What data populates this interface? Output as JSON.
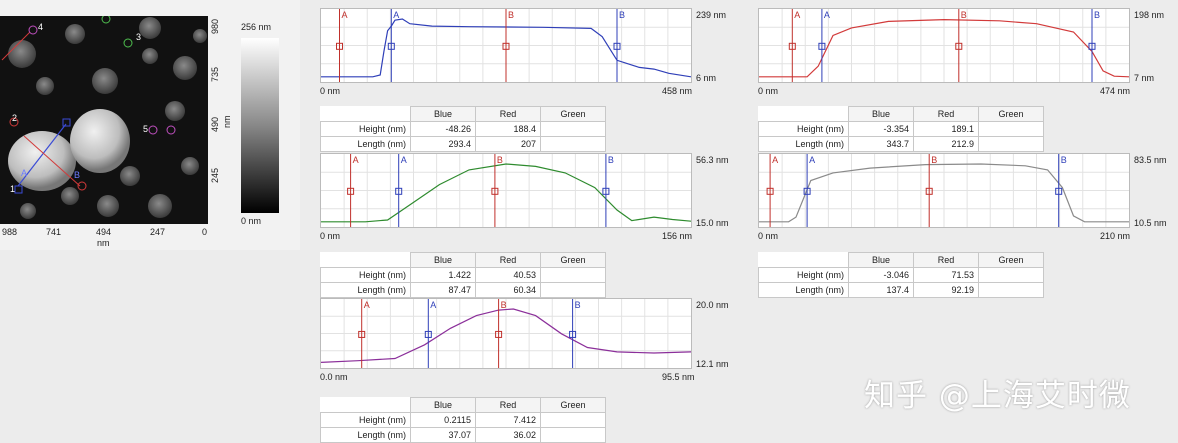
{
  "afm": {
    "y_ticks": [
      "980",
      "735",
      "490",
      "245"
    ],
    "x_ticks": [
      "988",
      "741",
      "494",
      "247",
      "0"
    ],
    "axis_unit": "nm",
    "scale_max": "256 nm",
    "scale_min": "0 nm",
    "markers": [
      "1",
      "2",
      "3",
      "4",
      "5"
    ],
    "cursor_labels": [
      "A",
      "B"
    ]
  },
  "table_headers": {
    "blue": "Blue",
    "red": "Red",
    "green": "Green",
    "height": "Height (nm)",
    "length": "Length (nm)"
  },
  "profiles": [
    {
      "id": "p1",
      "color": "#2f3fb8",
      "x_start": "0 nm",
      "x_end": "458 nm",
      "y_max": "239 nm",
      "y_min": "6 nm",
      "cursor_A_red": 0.05,
      "cursor_A_blue": 0.19,
      "cursor_B_red": 0.5,
      "cursor_B_blue": 0.8,
      "trace": [
        [
          0,
          0.02
        ],
        [
          0.14,
          0.02
        ],
        [
          0.16,
          0.05
        ],
        [
          0.17,
          0.45
        ],
        [
          0.18,
          0.8
        ],
        [
          0.19,
          0.88
        ],
        [
          0.2,
          0.98
        ],
        [
          0.22,
          1
        ],
        [
          0.24,
          0.92
        ],
        [
          0.3,
          0.88
        ],
        [
          0.4,
          0.87
        ],
        [
          0.6,
          0.86
        ],
        [
          0.73,
          0.84
        ],
        [
          0.76,
          0.7
        ],
        [
          0.8,
          0.3
        ],
        [
          0.86,
          0.18
        ],
        [
          0.9,
          0.15
        ],
        [
          0.94,
          0.08
        ],
        [
          1,
          0.02
        ]
      ],
      "blue": {
        "height": "-48.26",
        "length": "293.4"
      },
      "red": {
        "height": "188.4",
        "length": "207"
      }
    },
    {
      "id": "p2",
      "color": "#d23a3a",
      "x_start": "0 nm",
      "x_end": "474 nm",
      "y_max": "198 nm",
      "y_min": "7 nm",
      "cursor_A_red": 0.09,
      "cursor_A_blue": 0.17,
      "cursor_B_red": 0.54,
      "cursor_B_blue": 0.9,
      "trace": [
        [
          0,
          0.02
        ],
        [
          0.13,
          0.02
        ],
        [
          0.16,
          0.2
        ],
        [
          0.2,
          0.72
        ],
        [
          0.25,
          0.85
        ],
        [
          0.35,
          0.96
        ],
        [
          0.5,
          0.99
        ],
        [
          0.65,
          0.97
        ],
        [
          0.75,
          0.92
        ],
        [
          0.85,
          0.78
        ],
        [
          0.9,
          0.45
        ],
        [
          0.93,
          0.12
        ],
        [
          0.96,
          0.03
        ],
        [
          1,
          0.02
        ]
      ],
      "blue": {
        "height": "-3.354",
        "length": "343.7"
      },
      "red": {
        "height": "189.1",
        "length": "212.9"
      }
    },
    {
      "id": "p3",
      "color": "#2e8b2e",
      "x_start": "0 nm",
      "x_end": "156 nm",
      "y_max": "56.3 nm",
      "y_min": "15.0 nm",
      "cursor_A_red": 0.08,
      "cursor_A_blue": 0.21,
      "cursor_B_red": 0.47,
      "cursor_B_blue": 0.77,
      "trace": [
        [
          0,
          0.02
        ],
        [
          0.12,
          0.02
        ],
        [
          0.18,
          0.05
        ],
        [
          0.25,
          0.35
        ],
        [
          0.32,
          0.65
        ],
        [
          0.4,
          0.9
        ],
        [
          0.5,
          1
        ],
        [
          0.58,
          0.96
        ],
        [
          0.66,
          0.85
        ],
        [
          0.74,
          0.6
        ],
        [
          0.8,
          0.22
        ],
        [
          0.84,
          0.04
        ],
        [
          0.9,
          0.1
        ],
        [
          0.95,
          0.06
        ],
        [
          1,
          0.03
        ]
      ],
      "blue": {
        "height": "1.422",
        "length": "87.47"
      },
      "red": {
        "height": "40.53",
        "length": "60.34"
      }
    },
    {
      "id": "p4",
      "color": "#8a8a8a",
      "x_start": "0 nm",
      "x_end": "210 nm",
      "y_max": "83.5 nm",
      "y_min": "10.5 nm",
      "cursor_A_red": 0.03,
      "cursor_A_blue": 0.13,
      "cursor_B_red": 0.46,
      "cursor_B_blue": 0.81,
      "trace": [
        [
          0,
          0.02
        ],
        [
          0.08,
          0.02
        ],
        [
          0.1,
          0.1
        ],
        [
          0.14,
          0.72
        ],
        [
          0.2,
          0.85
        ],
        [
          0.3,
          0.93
        ],
        [
          0.45,
          0.99
        ],
        [
          0.6,
          1
        ],
        [
          0.72,
          0.97
        ],
        [
          0.78,
          0.9
        ],
        [
          0.82,
          0.6
        ],
        [
          0.85,
          0.12
        ],
        [
          0.88,
          0.02
        ],
        [
          1,
          0.02
        ]
      ],
      "blue": {
        "height": "-3.046",
        "length": "137.4"
      },
      "red": {
        "height": "71.53",
        "length": "92.19"
      }
    },
    {
      "id": "p5",
      "color": "#8b2f9a",
      "x_start": "0.0 nm",
      "x_end": "95.5 nm",
      "y_max": "20.0 nm",
      "y_min": "12.1 nm",
      "cursor_A_red": 0.11,
      "cursor_A_blue": 0.29,
      "cursor_B_red": 0.48,
      "cursor_B_blue": 0.68,
      "trace": [
        [
          0,
          0.03
        ],
        [
          0.1,
          0.06
        ],
        [
          0.2,
          0.1
        ],
        [
          0.28,
          0.35
        ],
        [
          0.35,
          0.65
        ],
        [
          0.42,
          0.88
        ],
        [
          0.48,
          0.98
        ],
        [
          0.52,
          1
        ],
        [
          0.58,
          0.88
        ],
        [
          0.65,
          0.55
        ],
        [
          0.72,
          0.3
        ],
        [
          0.8,
          0.22
        ],
        [
          0.9,
          0.2
        ],
        [
          1,
          0.22
        ]
      ],
      "blue": {
        "height": "0.2115",
        "length": "37.07"
      },
      "red": {
        "height": "7.412",
        "length": "36.02"
      }
    }
  ],
  "watermark": "知乎 @上海艾时微"
}
